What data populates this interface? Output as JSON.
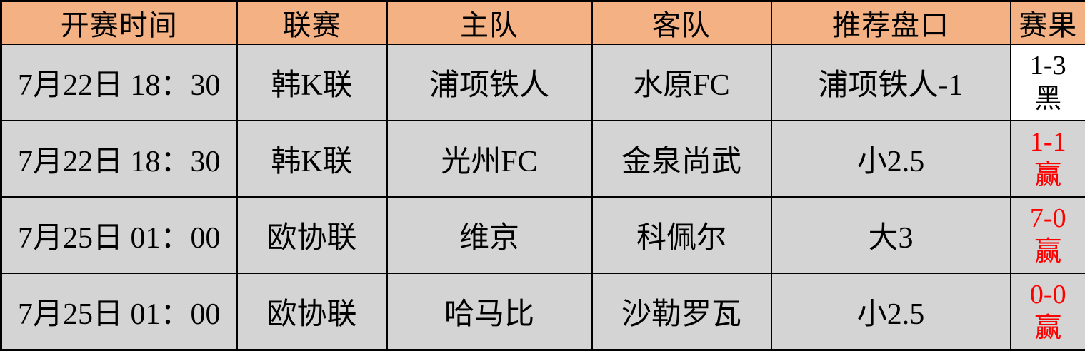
{
  "table": {
    "columns": [
      {
        "key": "time",
        "label": "开赛时间"
      },
      {
        "key": "league",
        "label": "联赛"
      },
      {
        "key": "home",
        "label": "主队"
      },
      {
        "key": "away",
        "label": "客队"
      },
      {
        "key": "handicap",
        "label": "推荐盘口"
      },
      {
        "key": "result",
        "label": "赛果"
      }
    ],
    "rows": [
      {
        "time": "7月22日 18：30",
        "league": "韩K联",
        "home": "浦项铁人",
        "away": "水原FC",
        "handicap": "浦项铁人-1",
        "result_score": "1-3",
        "result_verdict": "黑",
        "result_color": "#000000",
        "result_bg": "#ffffff"
      },
      {
        "time": "7月22日 18：30",
        "league": "韩K联",
        "home": "光州FC",
        "away": "金泉尚武",
        "handicap": "小2.5",
        "result_score": "1-1",
        "result_verdict": "赢",
        "result_color": "#ff0000",
        "result_bg": "#d4d4d4"
      },
      {
        "time": "7月25日 01：00",
        "league": "欧协联",
        "home": "维京",
        "away": "科佩尔",
        "handicap": "大3",
        "result_score": "7-0",
        "result_verdict": "赢",
        "result_color": "#ff0000",
        "result_bg": "#d4d4d4"
      },
      {
        "time": "7月25日 01：00",
        "league": "欧协联",
        "home": "哈马比",
        "away": "沙勒罗瓦",
        "handicap": "小2.5",
        "result_score": "0-0",
        "result_verdict": "赢",
        "result_color": "#ff0000",
        "result_bg": "#d4d4d4"
      }
    ]
  },
  "colors": {
    "header_bg": "#f4b183",
    "body_bg": "#d4d4d4",
    "border": "#000000",
    "win_red": "#ff0000",
    "loss_black": "#000000",
    "result_neutral_bg": "#ffffff"
  }
}
